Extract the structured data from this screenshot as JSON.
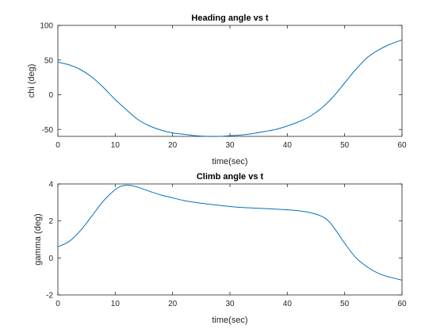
{
  "chart_data": [
    {
      "type": "line",
      "title": "Heading angle vs t",
      "xlabel": "time(sec)",
      "ylabel": "chi (deg)",
      "xlim": [
        0,
        60
      ],
      "ylim": [
        -60,
        100
      ],
      "xticks": [
        0,
        10,
        20,
        30,
        40,
        50,
        60
      ],
      "yticks": [
        -50,
        0,
        50,
        100
      ],
      "grid": false,
      "series": [
        {
          "color": "#0072BD",
          "x": [
            0,
            2,
            4,
            6,
            8,
            10,
            12,
            14,
            16,
            18,
            20,
            22,
            24,
            26,
            28,
            30,
            32,
            34,
            36,
            38,
            40,
            42,
            44,
            46,
            48,
            50,
            52,
            54,
            56,
            58,
            60
          ],
          "y": [
            47,
            43,
            36,
            25,
            10,
            -7,
            -22,
            -36,
            -45,
            -51,
            -55,
            -57,
            -59,
            -60,
            -60,
            -59,
            -58,
            -56,
            -53,
            -50,
            -45,
            -39,
            -31,
            -19,
            -3,
            17,
            37,
            54,
            65,
            73,
            79
          ]
        }
      ]
    },
    {
      "type": "line",
      "title": "Climb angle vs t",
      "xlabel": "time(sec)",
      "ylabel": "gamma (deg)",
      "xlim": [
        0,
        60
      ],
      "ylim": [
        -2,
        4
      ],
      "xticks": [
        0,
        10,
        20,
        30,
        40,
        50,
        60
      ],
      "yticks": [
        -2,
        0,
        2,
        4
      ],
      "grid": false,
      "series": [
        {
          "color": "#0072BD",
          "x": [
            0,
            2,
            4,
            6,
            8,
            10,
            11,
            12,
            13,
            14,
            16,
            18,
            20,
            22,
            24,
            26,
            28,
            30,
            32,
            34,
            36,
            38,
            40,
            42,
            44,
            46,
            47,
            48,
            50,
            52,
            54,
            56,
            58,
            60
          ],
          "y": [
            0.6,
            0.9,
            1.5,
            2.3,
            3.1,
            3.7,
            3.87,
            3.93,
            3.9,
            3.82,
            3.6,
            3.4,
            3.25,
            3.1,
            3.0,
            2.92,
            2.85,
            2.78,
            2.73,
            2.7,
            2.67,
            2.64,
            2.6,
            2.55,
            2.45,
            2.25,
            2.05,
            1.7,
            0.8,
            0.0,
            -0.5,
            -0.85,
            -1.05,
            -1.2
          ]
        }
      ]
    }
  ]
}
